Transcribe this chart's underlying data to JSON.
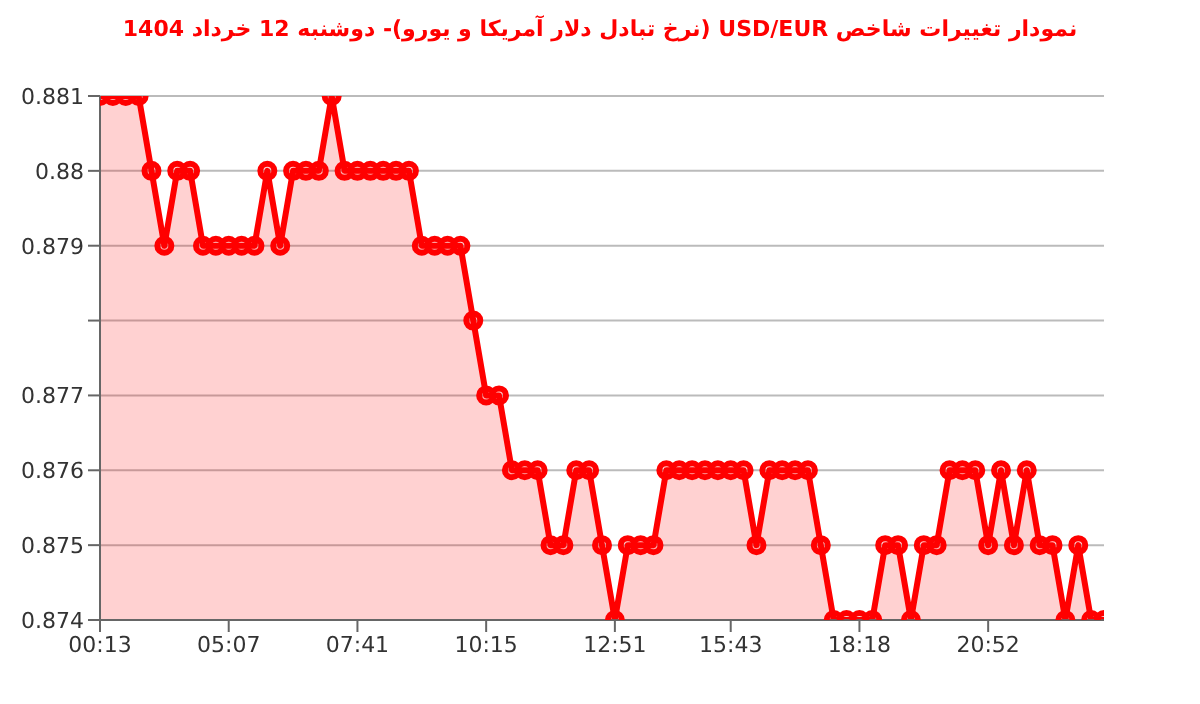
{
  "chart_data": {
    "type": "area",
    "title": "نمودار تغییرات شاخص USD/EUR (نرخ تبادل دلار آمریکا و یورو)- دوشنبه  12 خرداد 1404",
    "categories": [
      "00:13",
      null,
      null,
      null,
      null,
      null,
      null,
      null,
      null,
      null,
      "05:07",
      null,
      null,
      null,
      null,
      null,
      null,
      null,
      null,
      null,
      "07:41",
      null,
      null,
      null,
      null,
      null,
      null,
      null,
      null,
      null,
      "10:15",
      null,
      null,
      null,
      null,
      null,
      null,
      null,
      null,
      null,
      "12:51",
      null,
      null,
      null,
      null,
      null,
      null,
      null,
      null,
      "15:43",
      null,
      null,
      null,
      null,
      null,
      null,
      null,
      null,
      null,
      "18:18",
      null,
      null,
      null,
      null,
      null,
      null,
      null,
      null,
      null,
      "20:52",
      null,
      null,
      null,
      null,
      null,
      null,
      null,
      null,
      null
    ],
    "series": [
      {
        "color": "#ff0000",
        "values": [
          0.881,
          0.881,
          0.881,
          0.881,
          0.88,
          0.879,
          0.88,
          0.88,
          0.879,
          0.879,
          0.879,
          0.879,
          0.879,
          0.88,
          0.879,
          0.88,
          0.88,
          0.88,
          0.881,
          0.88,
          0.88,
          0.88,
          0.88,
          0.88,
          0.88,
          0.879,
          0.879,
          0.879,
          0.879,
          0.878,
          0.877,
          0.877,
          0.876,
          0.876,
          0.876,
          0.875,
          0.875,
          0.876,
          0.876,
          0.875,
          0.874,
          0.875,
          0.875,
          0.875,
          0.876,
          0.876,
          0.876,
          0.876,
          0.876,
          0.876,
          0.876,
          0.875,
          0.876,
          0.876,
          0.876,
          0.876,
          0.875,
          0.874,
          0.874,
          0.874,
          0.874,
          0.875,
          0.875,
          0.874,
          0.875,
          0.875,
          0.876,
          0.876,
          0.876,
          0.875,
          0.876,
          0.875,
          0.876,
          0.875,
          0.875,
          0.874,
          0.875,
          0.874,
          0.874
        ]
      }
    ],
    "ylim": [
      0.874,
      0.881
    ],
    "yticks": [
      0.874,
      0.875,
      0.876,
      0.877,
      {
        "value": 0.878,
        "label": null
      },
      0.879,
      0.88,
      0.881
    ],
    "grid": "y",
    "marker": "circle"
  }
}
